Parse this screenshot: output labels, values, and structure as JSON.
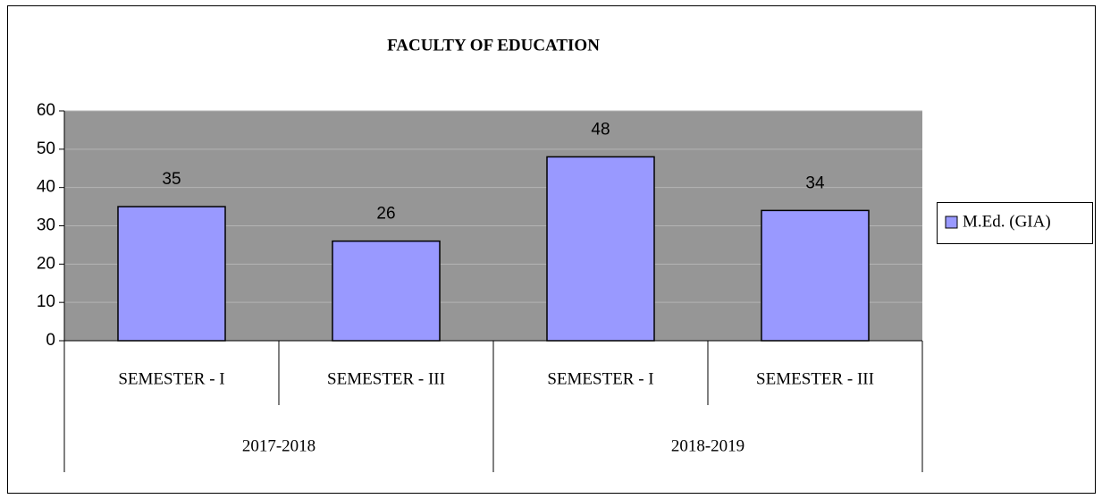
{
  "chart_data": {
    "type": "bar",
    "title": "FACULTY OF EDUCATION",
    "categories": [
      "SEMESTER - I",
      "SEMESTER - III",
      "SEMESTER - I",
      "SEMESTER - III"
    ],
    "groups": [
      "2017-2018",
      "2018-2019"
    ],
    "series": [
      {
        "name": "M.Ed. (GIA)",
        "color": "#9999ff",
        "values": [
          35,
          26,
          48,
          34
        ]
      }
    ],
    "ylim": [
      0,
      60
    ],
    "yticks": [
      0,
      10,
      20,
      30,
      40,
      50,
      60
    ],
    "grid": true,
    "legend": "right"
  }
}
